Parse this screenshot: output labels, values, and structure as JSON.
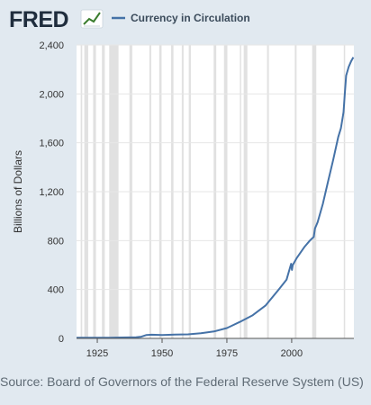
{
  "brand": {
    "name": "FRED"
  },
  "colors": {
    "background": "#e1e9f0",
    "plot_background": "#ffffff",
    "series": "#4572a7",
    "recession": "#e1e1e1",
    "grid": "#e6e6e6"
  },
  "source": "Source: Board of Governors of the Federal Reserve System (US)",
  "chart_data": {
    "type": "line",
    "title": "",
    "xlabel": "",
    "ylabel": "Billions of Dollars",
    "xlim": [
      1917,
      2024
    ],
    "ylim": [
      0,
      2400
    ],
    "x_ticks": [
      1925,
      1950,
      1975,
      2000
    ],
    "x_tick_labels": [
      "1925",
      "1950",
      "1975",
      "2000"
    ],
    "y_ticks": [
      0,
      400,
      800,
      1200,
      1600,
      2000,
      2400
    ],
    "y_tick_labels": [
      "0",
      "400",
      "800",
      "1,200",
      "1,600",
      "2,000",
      "2,400"
    ],
    "grid": "horizontal",
    "legend": "top",
    "recessions": [
      [
        1918.6,
        1919.2
      ],
      [
        1920.0,
        1921.5
      ],
      [
        1923.4,
        1924.5
      ],
      [
        1926.8,
        1927.9
      ],
      [
        1929.6,
        1933.2
      ],
      [
        1937.4,
        1938.5
      ],
      [
        1945.1,
        1945.8
      ],
      [
        1948.9,
        1949.8
      ],
      [
        1953.5,
        1954.4
      ],
      [
        1957.6,
        1958.3
      ],
      [
        1960.3,
        1961.1
      ],
      [
        1969.9,
        1970.9
      ],
      [
        1973.9,
        1975.2
      ],
      [
        1980.0,
        1980.5
      ],
      [
        1981.5,
        1982.9
      ],
      [
        1990.5,
        1991.2
      ],
      [
        2001.2,
        2001.9
      ],
      [
        2007.9,
        2009.5
      ],
      [
        2020.1,
        2020.3
      ]
    ],
    "series": [
      {
        "name": "Currency in Circulation",
        "color": "#4572a7",
        "x": [
          1917,
          1930,
          1940,
          1942,
          1944,
          1946,
          1950,
          1955,
          1960,
          1965,
          1970,
          1975,
          1980,
          1985,
          1990,
          1995,
          1998,
          1999.8,
          2000.1,
          2000.4,
          2002,
          2005,
          2007,
          2008,
          2008.5,
          2009,
          2010,
          2012,
          2014,
          2016,
          2018,
          2019,
          2020,
          2020.5,
          2021,
          2022,
          2023,
          2023.8
        ],
        "y": [
          5,
          6,
          9,
          14,
          28,
          30,
          28,
          31,
          33,
          42,
          57,
          85,
          135,
          190,
          270,
          400,
          480,
          610,
          560,
          600,
          660,
          750,
          800,
          820,
          830,
          900,
          950,
          1100,
          1280,
          1460,
          1650,
          1720,
          1850,
          2000,
          2150,
          2220,
          2270,
          2300
        ]
      }
    ]
  }
}
